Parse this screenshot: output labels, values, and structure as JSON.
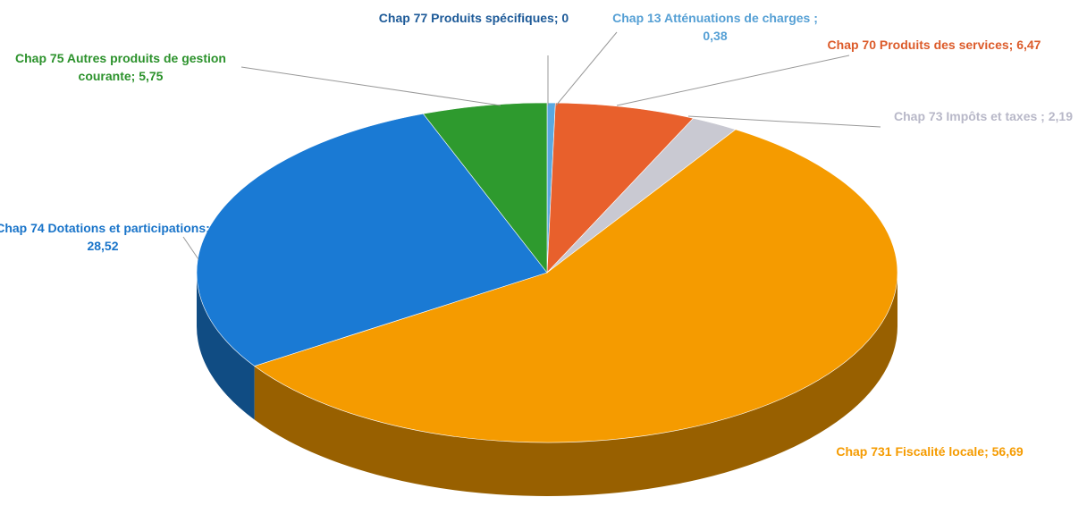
{
  "chart_data": {
    "type": "pie3d",
    "categories": [
      "Chap 77 Produits spécifiques;",
      "Chap 13 Atténuations de charges ;",
      "Chap 70 Produits des services;",
      "Chap 73 Impôts et taxes ;",
      "Chap 731 Fiscalité locale;",
      "Chap 74 Dotations et participations;",
      "Chap 75 Autres produits de gestion courante;"
    ],
    "values": [
      0,
      0.38,
      6.47,
      2.19,
      56.69,
      28.52,
      5.75
    ],
    "value_labels": [
      "0",
      "0,38",
      "6,47",
      "2,19",
      "56,69",
      "28,52",
      "5,75"
    ],
    "colors": [
      "#1f5fa0",
      "#5aa8e0",
      "#e8602c",
      "#c9c9d2",
      "#f59b00",
      "#1a7ad4",
      "#2e9a2e"
    ]
  }
}
